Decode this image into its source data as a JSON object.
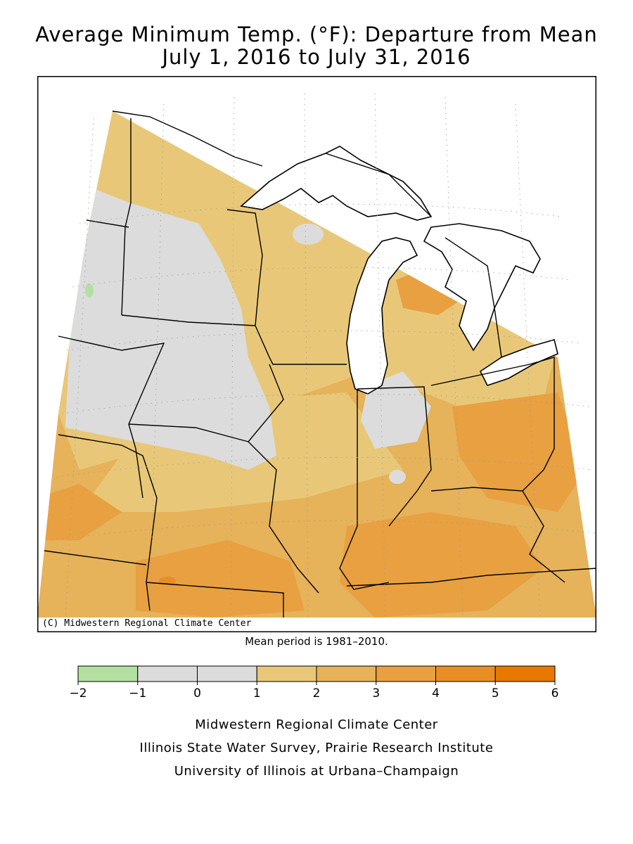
{
  "title_line1": "Average Minimum Temp. (°F): Departure from Mean",
  "title_line2": "July 1, 2016 to July 31, 2016",
  "copyright": "(C) Midwestern Regional Climate Center",
  "mean_note": "Mean period is 1981–2010.",
  "legend": {
    "ticks": [
      "−2",
      "−1",
      "0",
      "1",
      "2",
      "3",
      "4",
      "5",
      "6"
    ],
    "bins": [
      {
        "from": -2,
        "to": -1,
        "color": "#b3e0a0"
      },
      {
        "from": -1,
        "to": 0,
        "color": "#dcdcdc"
      },
      {
        "from": 0,
        "to": 1,
        "color": "#dcdcdc"
      },
      {
        "from": 1,
        "to": 2,
        "color": "#e8c878"
      },
      {
        "from": 2,
        "to": 3,
        "color": "#e6b25a"
      },
      {
        "from": 3,
        "to": 4,
        "color": "#e8a040"
      },
      {
        "from": 4,
        "to": 5,
        "color": "#e88e25"
      },
      {
        "from": 5,
        "to": 6,
        "color": "#e87800"
      }
    ]
  },
  "credits": [
    "Midwestern Regional Climate Center",
    "Illinois State Water Survey, Prairie Research Institute",
    "University of Illinois at Urbana–Champaign"
  ],
  "colors": {
    "lake": "#ffffff",
    "outline": "#000000",
    "grid": "#9a9a9a"
  }
}
